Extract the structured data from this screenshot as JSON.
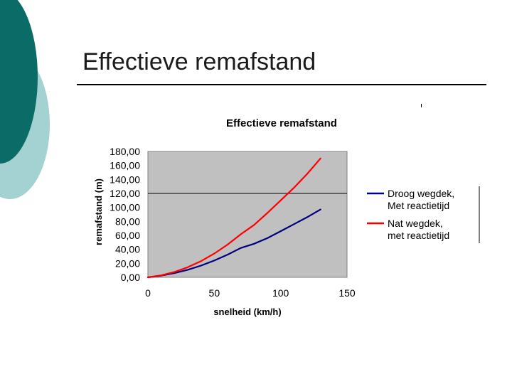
{
  "slide": {
    "title": "Effectieve remafstand"
  },
  "colors": {
    "decor_dark": "#0b6b67",
    "decor_light": "#a4d2d2",
    "plot_bg": "#c0c0c0",
    "series_dry": "#000080",
    "series_wet": "#ff0000"
  },
  "chart_data": {
    "type": "line",
    "title": "Effectieve remafstand",
    "xlabel": "snelheid (km/h)",
    "ylabel": "remafstand (m)",
    "xlim": [
      0,
      150
    ],
    "ylim": [
      0,
      180
    ],
    "x_ticks": [
      "0",
      "50",
      "100",
      "150"
    ],
    "y_ticks": [
      "0,00",
      "20,00",
      "40,00",
      "60,00",
      "80,00",
      "100,00",
      "120,00",
      "140,00",
      "160,00",
      "180,00"
    ],
    "grid": "horizontal line at 120",
    "legend_position": "right",
    "series": [
      {
        "name": "Droog wegdek, Met reactietijd",
        "color": "#000080",
        "x": [
          0,
          10,
          20,
          30,
          40,
          50,
          60,
          70,
          80,
          90,
          100,
          110,
          120,
          130
        ],
        "values": [
          0,
          2.4,
          6,
          10.8,
          16.8,
          24,
          32.4,
          42,
          48,
          56,
          66,
          76,
          86,
          97
        ]
      },
      {
        "name": "Nat wegdek, met reactietijd",
        "color": "#ff0000",
        "x": [
          0,
          10,
          20,
          30,
          40,
          50,
          60,
          70,
          80,
          90,
          100,
          110,
          120,
          130
        ],
        "values": [
          0,
          2.8,
          7.6,
          14.4,
          23.2,
          34,
          46.8,
          61.6,
          75,
          92,
          110,
          128,
          148,
          170
        ]
      }
    ]
  }
}
